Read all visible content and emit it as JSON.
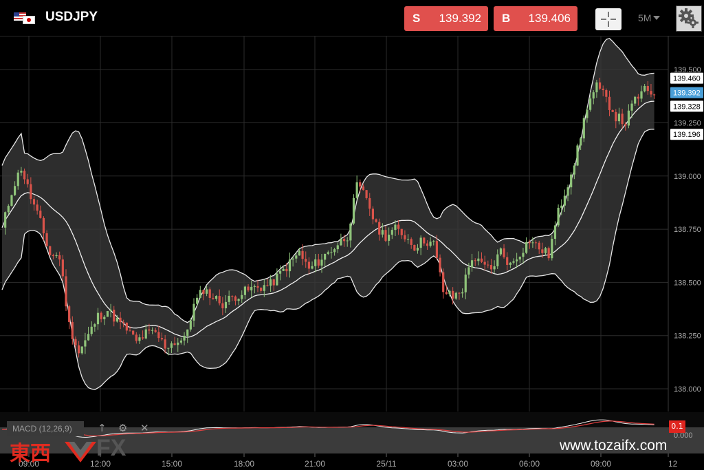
{
  "header": {
    "symbol": "USDJPY",
    "sell_label": "S",
    "sell_price": "139.392",
    "buy_label": "B",
    "buy_price": "139.406",
    "timeframe": "5M",
    "sell_color": "#e0504d",
    "buy_color": "#e0504d"
  },
  "icons": [
    "us-jp-flag-icon",
    "crosshair-icon",
    "chevron-down-icon",
    "settings-gear-icon",
    "arrow-up-icon",
    "gear-icon",
    "close-icon"
  ],
  "macd": {
    "label": "MACD (12,26,9)",
    "value_tag": "0.1",
    "zero_label": "0.000"
  },
  "watermark": {
    "kanji": "東西",
    "fx": "FX",
    "website": "www.tozaifx.com"
  },
  "chart_data": {
    "type": "candlestick",
    "indicators": [
      "Bollinger Bands",
      "MACD (12,26,9)"
    ],
    "yticks": [
      "139.500",
      "139.250",
      "139.000",
      "138.750",
      "138.500",
      "138.250",
      "138.000"
    ],
    "price_tags": [
      {
        "label": "139.460",
        "value": 139.46,
        "style": "white"
      },
      {
        "label": "139.392",
        "value": 139.392,
        "style": "blue"
      },
      {
        "label": "139.328",
        "value": 139.328,
        "style": "white"
      },
      {
        "label": "139.196",
        "value": 139.196,
        "style": "white"
      }
    ],
    "xticks": [
      "09:00",
      "12:00",
      "15:00",
      "18:00",
      "21:00",
      "25/11",
      "03:00",
      "06:00",
      "09:00",
      "12"
    ],
    "close_path": [
      [
        0,
        138.75
      ],
      [
        3,
        138.93
      ],
      [
        6,
        139.04
      ],
      [
        9,
        138.9
      ],
      [
        12,
        138.78
      ],
      [
        15,
        138.63
      ],
      [
        18,
        138.62
      ],
      [
        21,
        138.3
      ],
      [
        24,
        138.17
      ],
      [
        27,
        138.25
      ],
      [
        30,
        138.34
      ],
      [
        33,
        138.37
      ],
      [
        36,
        138.32
      ],
      [
        39,
        138.28
      ],
      [
        42,
        138.22
      ],
      [
        45,
        138.26
      ],
      [
        48,
        138.26
      ],
      [
        51,
        138.2
      ],
      [
        54,
        138.22
      ],
      [
        57,
        138.23
      ],
      [
        60,
        138.39
      ],
      [
        63,
        138.47
      ],
      [
        66,
        138.43
      ],
      [
        69,
        138.4
      ],
      [
        72,
        138.43
      ],
      [
        75,
        138.45
      ],
      [
        78,
        138.47
      ],
      [
        81,
        138.48
      ],
      [
        84,
        138.49
      ],
      [
        87,
        138.54
      ],
      [
        90,
        138.59
      ],
      [
        93,
        138.64
      ],
      [
        96,
        138.56
      ],
      [
        99,
        138.6
      ],
      [
        102,
        138.64
      ],
      [
        105,
        138.68
      ],
      [
        108,
        138.72
      ],
      [
        111,
        138.95
      ],
      [
        114,
        138.9
      ],
      [
        117,
        138.76
      ],
      [
        120,
        138.72
      ],
      [
        123,
        138.75
      ],
      [
        126,
        138.72
      ],
      [
        129,
        138.67
      ],
      [
        132,
        138.7
      ],
      [
        135,
        138.68
      ],
      [
        138,
        138.46
      ],
      [
        141,
        138.43
      ],
      [
        144,
        138.47
      ],
      [
        147,
        138.62
      ],
      [
        150,
        138.58
      ],
      [
        153,
        138.56
      ],
      [
        156,
        138.65
      ],
      [
        159,
        138.58
      ],
      [
        162,
        138.64
      ],
      [
        165,
        138.7
      ],
      [
        168,
        138.66
      ],
      [
        171,
        138.63
      ],
      [
        174,
        138.83
      ],
      [
        177,
        138.97
      ],
      [
        180,
        139.12
      ],
      [
        183,
        139.33
      ],
      [
        186,
        139.42
      ],
      [
        189,
        139.36
      ],
      [
        192,
        139.28
      ],
      [
        195,
        139.25
      ],
      [
        198,
        139.36
      ],
      [
        201,
        139.4
      ],
      [
        204,
        139.39
      ]
    ]
  }
}
